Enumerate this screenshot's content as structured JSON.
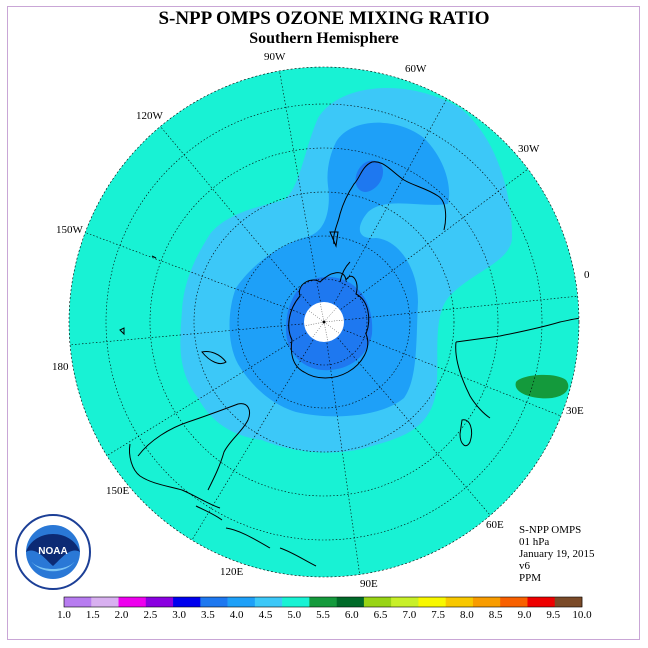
{
  "title": "S-NPP OMPS OZONE MIXING RATIO",
  "subtitle": "Southern Hemisphere",
  "longitude_labels": [
    "90W",
    "60W",
    "30W",
    "0",
    "30E",
    "60E",
    "90E",
    "120E",
    "150E",
    "180",
    "150W",
    "120W"
  ],
  "info": {
    "instrument": "S-NPP OMPS",
    "level": "01 hPa",
    "date": "January 19, 2015",
    "version": "v6",
    "units": "PPM"
  },
  "colorbar": {
    "ticks": [
      "1.0",
      "1.5",
      "2.0",
      "2.5",
      "3.0",
      "3.5",
      "4.0",
      "4.5",
      "5.0",
      "5.5",
      "6.0",
      "6.5",
      "7.0",
      "7.5",
      "8.0",
      "8.5",
      "9.0",
      "9.5",
      "10.0"
    ],
    "colors": [
      "#b77cf0",
      "#d8b0f0",
      "#ee00ee",
      "#8a00e0",
      "#0000ee",
      "#1e78f0",
      "#1ea0f8",
      "#3cc8f8",
      "#18f2d4",
      "#149a3c",
      "#006a28",
      "#98d414",
      "#c8f028",
      "#f8f800",
      "#f8c800",
      "#f89c00",
      "#f86000",
      "#ee0000",
      "#7a4a28"
    ]
  },
  "colors": {
    "ocean_background": "#18f2d4",
    "level_4_0": "#3cc8f8",
    "level_3_5": "#1ea0f8",
    "level_3_0": "#1e78f0",
    "high_5_5": "#149a3c",
    "pole_mask": "#ffffff"
  }
}
